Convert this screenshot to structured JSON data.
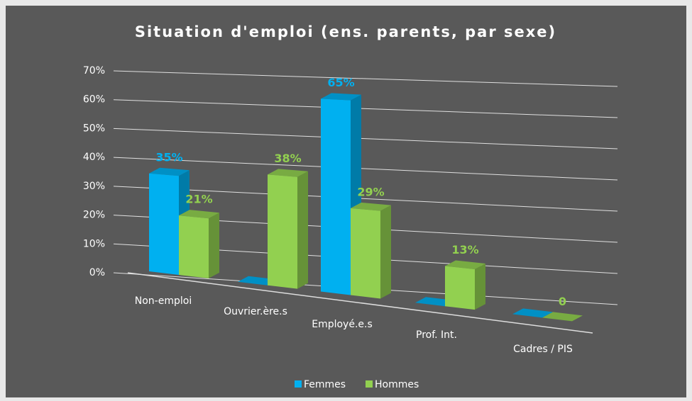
{
  "chart_data": {
    "type": "bar3d",
    "title": "Situation d'emploi (ens. parents, par sexe)",
    "categories": [
      "Non-emploi",
      "Ouvrier.ère.s",
      "Employé.e.s",
      "Prof. Int.",
      "Cadres / PIS"
    ],
    "series": [
      {
        "name": "Femmes",
        "color": "#00b0f0",
        "values": [
          35,
          0,
          65,
          0,
          0
        ],
        "value_labels": [
          "35%",
          null,
          "65%",
          null,
          null
        ]
      },
      {
        "name": "Hommes",
        "color": "#92d050",
        "values": [
          21,
          38,
          29,
          13,
          0
        ],
        "value_labels": [
          "21%",
          "38%",
          "29%",
          "13%",
          "0"
        ]
      }
    ],
    "ylim": [
      0,
      70
    ],
    "yticks": [
      {
        "value": 0,
        "label": "0%"
      },
      {
        "value": 10,
        "label": "10%"
      },
      {
        "value": 20,
        "label": "20%"
      },
      {
        "value": 30,
        "label": "30%"
      },
      {
        "value": 40,
        "label": "40%"
      },
      {
        "value": 50,
        "label": "50%"
      },
      {
        "value": 60,
        "label": "60%"
      },
      {
        "value": 70,
        "label": "70%"
      }
    ],
    "grid": true,
    "legend": "bottom"
  }
}
